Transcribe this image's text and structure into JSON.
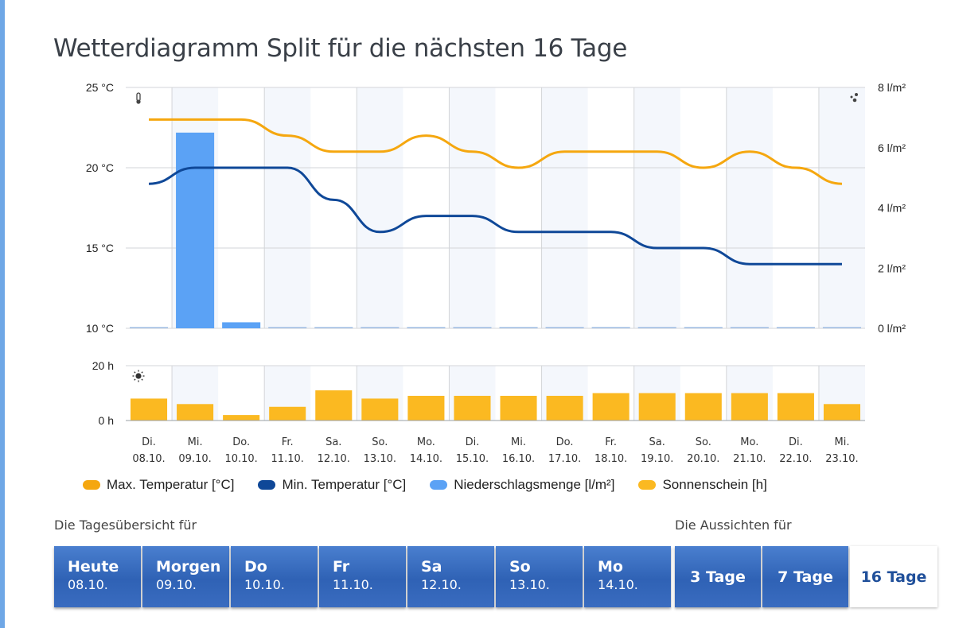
{
  "page": {
    "title": "Wetterdiagramm Split für die nächsten 16 Tage"
  },
  "colors": {
    "max_temp": "#f5a70f",
    "min_temp": "#0f4898",
    "rain": "#5ba2f5",
    "sun": "#fbb921",
    "shade": "#f4f7fc",
    "grid": "#d3d5d8",
    "accent_left_bar": "#6fa7e6"
  },
  "chart_data": [
    {
      "type": "line",
      "title": "",
      "categories": [
        "Di.|08.10.",
        "Mi.|09.10.",
        "Do.|10.10.",
        "Fr.|11.10.",
        "Sa.|12.10.",
        "So.|13.10.",
        "Mo.|14.10.",
        "Di.|15.10.",
        "Mi.|16.10.",
        "Do.|17.10.",
        "Fr.|18.10.",
        "Sa.|19.10.",
        "So.|20.10.",
        "Mo.|21.10.",
        "Di.|22.10.",
        "Mi.|23.10."
      ],
      "y_left": {
        "label": "Temperatur",
        "ylim": [
          10,
          25
        ],
        "ticks": [
          "25 °C",
          "20 °C",
          "15 °C",
          "10 °C"
        ],
        "tick_values": [
          25,
          20,
          15,
          10
        ]
      },
      "y_right": {
        "label": "Niederschlag",
        "ylim": [
          0,
          8
        ],
        "ticks": [
          "8 l/m²",
          "6 l/m²",
          "4 l/m²",
          "2 l/m²",
          "0 l/m²"
        ],
        "tick_values": [
          8,
          6,
          4,
          2,
          0
        ]
      },
      "series": [
        {
          "name": "Max. Temperatur [°C]",
          "kind": "line",
          "axis": "left",
          "values": [
            23,
            23,
            23,
            22,
            21,
            21,
            22,
            21,
            20,
            21,
            21,
            21,
            20,
            21,
            20,
            19
          ]
        },
        {
          "name": "Min. Temperatur [°C]",
          "kind": "line",
          "axis": "left",
          "values": [
            19,
            20,
            20,
            20,
            18,
            16,
            17,
            17,
            16,
            16,
            16,
            15,
            15,
            14,
            14,
            14
          ]
        },
        {
          "name": "Niederschlagsmenge [l/m²]",
          "kind": "bar",
          "axis": "right",
          "values": [
            0,
            6.5,
            0.2,
            0,
            0,
            0,
            0,
            0,
            0,
            0,
            0,
            0,
            0,
            0,
            0,
            0
          ]
        }
      ],
      "icons": {
        "left": "thermometer-icon",
        "right": "raindrops-icon"
      },
      "grid": true
    },
    {
      "type": "bar",
      "title": "",
      "categories": [
        "08.10.",
        "09.10.",
        "10.10.",
        "11.10.",
        "12.10.",
        "13.10.",
        "14.10.",
        "15.10.",
        "16.10.",
        "17.10.",
        "18.10.",
        "19.10.",
        "20.10.",
        "21.10.",
        "22.10.",
        "23.10."
      ],
      "ylim": [
        0,
        20
      ],
      "ticks": [
        "20 h",
        "0 h"
      ],
      "tick_values": [
        20,
        0
      ],
      "series": [
        {
          "name": "Sonnenschein [h]",
          "values": [
            8,
            6,
            2,
            5,
            11,
            8,
            9,
            9,
            9,
            9,
            10,
            10,
            10,
            10,
            10,
            6
          ]
        }
      ],
      "icon": "sun-icon",
      "grid": true
    }
  ],
  "x_labels": [
    {
      "day": "Di.",
      "date": "08.10."
    },
    {
      "day": "Mi.",
      "date": "09.10."
    },
    {
      "day": "Do.",
      "date": "10.10."
    },
    {
      "day": "Fr.",
      "date": "11.10."
    },
    {
      "day": "Sa.",
      "date": "12.10."
    },
    {
      "day": "So.",
      "date": "13.10."
    },
    {
      "day": "Mo.",
      "date": "14.10."
    },
    {
      "day": "Di.",
      "date": "15.10."
    },
    {
      "day": "Mi.",
      "date": "16.10."
    },
    {
      "day": "Do.",
      "date": "17.10."
    },
    {
      "day": "Fr.",
      "date": "18.10."
    },
    {
      "day": "Sa.",
      "date": "19.10."
    },
    {
      "day": "So.",
      "date": "20.10."
    },
    {
      "day": "Mo.",
      "date": "21.10."
    },
    {
      "day": "Di.",
      "date": "22.10."
    },
    {
      "day": "Mi.",
      "date": "23.10."
    }
  ],
  "legend": [
    {
      "label": "Max.  Temperatur [°C]",
      "color": "#f5a70f"
    },
    {
      "label": "Min.  Temperatur [°C]",
      "color": "#0f4898"
    },
    {
      "label": "Niederschlagsmenge [l/m²]",
      "color": "#5ba2f5"
    },
    {
      "label": "Sonnenschein [h]",
      "color": "#fbb921"
    }
  ],
  "daily_overview": {
    "label": "Die Tagesübersicht für",
    "tabs": [
      {
        "title": "Heute",
        "date": "08.10."
      },
      {
        "title": "Morgen",
        "date": "09.10."
      },
      {
        "title": "Do",
        "date": "10.10."
      },
      {
        "title": "Fr",
        "date": "11.10."
      },
      {
        "title": "Sa",
        "date": "12.10."
      },
      {
        "title": "So",
        "date": "13.10."
      },
      {
        "title": "Mo",
        "date": "14.10."
      }
    ]
  },
  "outlook": {
    "label": "Die Aussichten für",
    "tabs": [
      {
        "label": "3 Tage",
        "active": false
      },
      {
        "label": "7 Tage",
        "active": false
      },
      {
        "label": "16 Tage",
        "active": true
      }
    ]
  }
}
